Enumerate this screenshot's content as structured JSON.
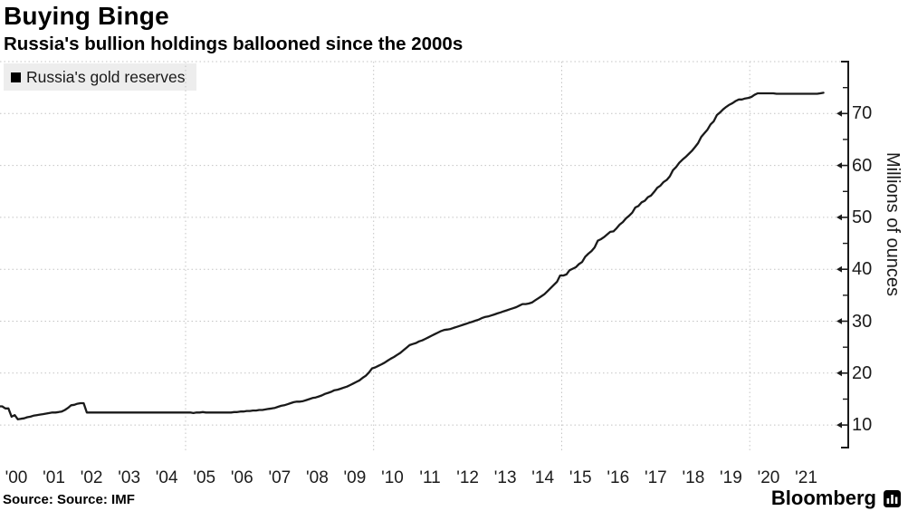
{
  "header": {
    "title": "Buying Binge",
    "subtitle": "Russia's bullion holdings ballooned since the 2000s"
  },
  "legend": {
    "label": "Russia's gold reserves",
    "swatch_color": "#000000"
  },
  "footer": {
    "source_label": "Source: Source: IMF",
    "brand": "Bloomberg",
    "brand_icon": "bloomberg-bars-logo"
  },
  "chart_data": {
    "type": "line",
    "title": "Buying Binge",
    "subtitle": "Russia's bullion holdings ballooned since the 2000s",
    "series_name": "Russia's gold reserves",
    "ylabel": "Millions of ounces",
    "frequency": "monthly",
    "x_start_year": 2000,
    "x_end_year": 2021,
    "x_tick_labels": [
      "'00",
      "'01",
      "'02",
      "'03",
      "'04",
      "'05",
      "'06",
      "'07",
      "'08",
      "'09",
      "'10",
      "'11",
      "'12",
      "'13",
      "'14",
      "'15",
      "'16",
      "'17",
      "'18",
      "'19",
      "'20",
      "'21"
    ],
    "y_major_ticks": [
      10,
      20,
      30,
      40,
      50,
      60,
      70
    ],
    "y_minor_ticks": [
      15,
      25,
      35,
      45,
      55,
      65,
      75
    ],
    "y_gridlines": [
      10,
      20,
      30,
      40,
      50,
      60,
      70,
      80
    ],
    "vertical_grid_years": [
      2005,
      2010,
      2015,
      2020
    ],
    "ylim": [
      5.5,
      80
    ],
    "grid_on": true,
    "legend_position": "top-left",
    "line_color": "#1a1a1a",
    "grid_color": "#c4c4c4",
    "legend_bg_color": "#ededed",
    "values_millions_oz": [
      13.6,
      13.6,
      13.2,
      13.2,
      11.6,
      11.9,
      11.1,
      11.2,
      11.3,
      11.5,
      11.6,
      11.8,
      11.9,
      12.0,
      12.1,
      12.2,
      12.3,
      12.4,
      12.4,
      12.5,
      12.6,
      12.9,
      13.3,
      13.8,
      13.9,
      14.1,
      14.2,
      14.2,
      12.4,
      12.4,
      12.4,
      12.4,
      12.4,
      12.4,
      12.4,
      12.4,
      12.4,
      12.4,
      12.4,
      12.4,
      12.4,
      12.4,
      12.4,
      12.4,
      12.4,
      12.4,
      12.4,
      12.4,
      12.4,
      12.4,
      12.4,
      12.4,
      12.4,
      12.4,
      12.4,
      12.4,
      12.4,
      12.4,
      12.4,
      12.4,
      12.4,
      12.4,
      12.3,
      12.4,
      12.4,
      12.5,
      12.4,
      12.4,
      12.4,
      12.4,
      12.4,
      12.4,
      12.4,
      12.4,
      12.4,
      12.5,
      12.5,
      12.6,
      12.6,
      12.7,
      12.7,
      12.8,
      12.8,
      12.9,
      12.9,
      13.0,
      13.1,
      13.2,
      13.3,
      13.5,
      13.7,
      13.8,
      14.0,
      14.2,
      14.4,
      14.5,
      14.5,
      14.6,
      14.8,
      15.0,
      15.2,
      15.3,
      15.5,
      15.7,
      16.0,
      16.2,
      16.4,
      16.7,
      16.8,
      17.0,
      17.2,
      17.4,
      17.7,
      18.0,
      18.3,
      18.6,
      19.1,
      19.5,
      20.1,
      20.9,
      21.1,
      21.4,
      21.7,
      22.0,
      22.4,
      22.8,
      23.1,
      23.5,
      23.9,
      24.4,
      24.9,
      25.4,
      25.6,
      25.8,
      26.1,
      26.3,
      26.6,
      26.9,
      27.2,
      27.5,
      27.8,
      28.1,
      28.3,
      28.4,
      28.5,
      28.7,
      28.9,
      29.1,
      29.3,
      29.5,
      29.7,
      29.9,
      30.1,
      30.3,
      30.6,
      30.8,
      30.9,
      31.1,
      31.3,
      31.5,
      31.7,
      31.9,
      32.1,
      32.3,
      32.5,
      32.7,
      33.0,
      33.3,
      33.3,
      33.4,
      33.6,
      34.0,
      34.4,
      34.8,
      35.2,
      35.8,
      36.4,
      37.0,
      37.6,
      38.8,
      38.8,
      39.0,
      39.8,
      40.1,
      40.4,
      41.0,
      41.4,
      42.4,
      43.0,
      43.5,
      44.2,
      45.5,
      45.8,
      46.2,
      46.7,
      47.2,
      47.3,
      47.9,
      48.6,
      49.1,
      49.8,
      50.3,
      50.9,
      51.9,
      52.2,
      52.9,
      53.2,
      53.9,
      54.2,
      54.9,
      55.7,
      56.1,
      56.8,
      57.2,
      57.9,
      59.1,
      59.7,
      60.5,
      61.1,
      61.6,
      62.2,
      62.8,
      63.5,
      64.3,
      65.5,
      66.2,
      66.9,
      67.9,
      68.5,
      69.7,
      70.2,
      70.8,
      71.3,
      71.7,
      72.0,
      72.4,
      72.7,
      72.7,
      72.9,
      73.0,
      73.2,
      73.6,
      73.9,
      73.9,
      73.9,
      73.9,
      73.9,
      73.9,
      73.8,
      73.8,
      73.8,
      73.8,
      73.8,
      73.8,
      73.8,
      73.8,
      73.8,
      73.8,
      73.8,
      73.8,
      73.8,
      73.8,
      73.9,
      74.0
    ]
  }
}
